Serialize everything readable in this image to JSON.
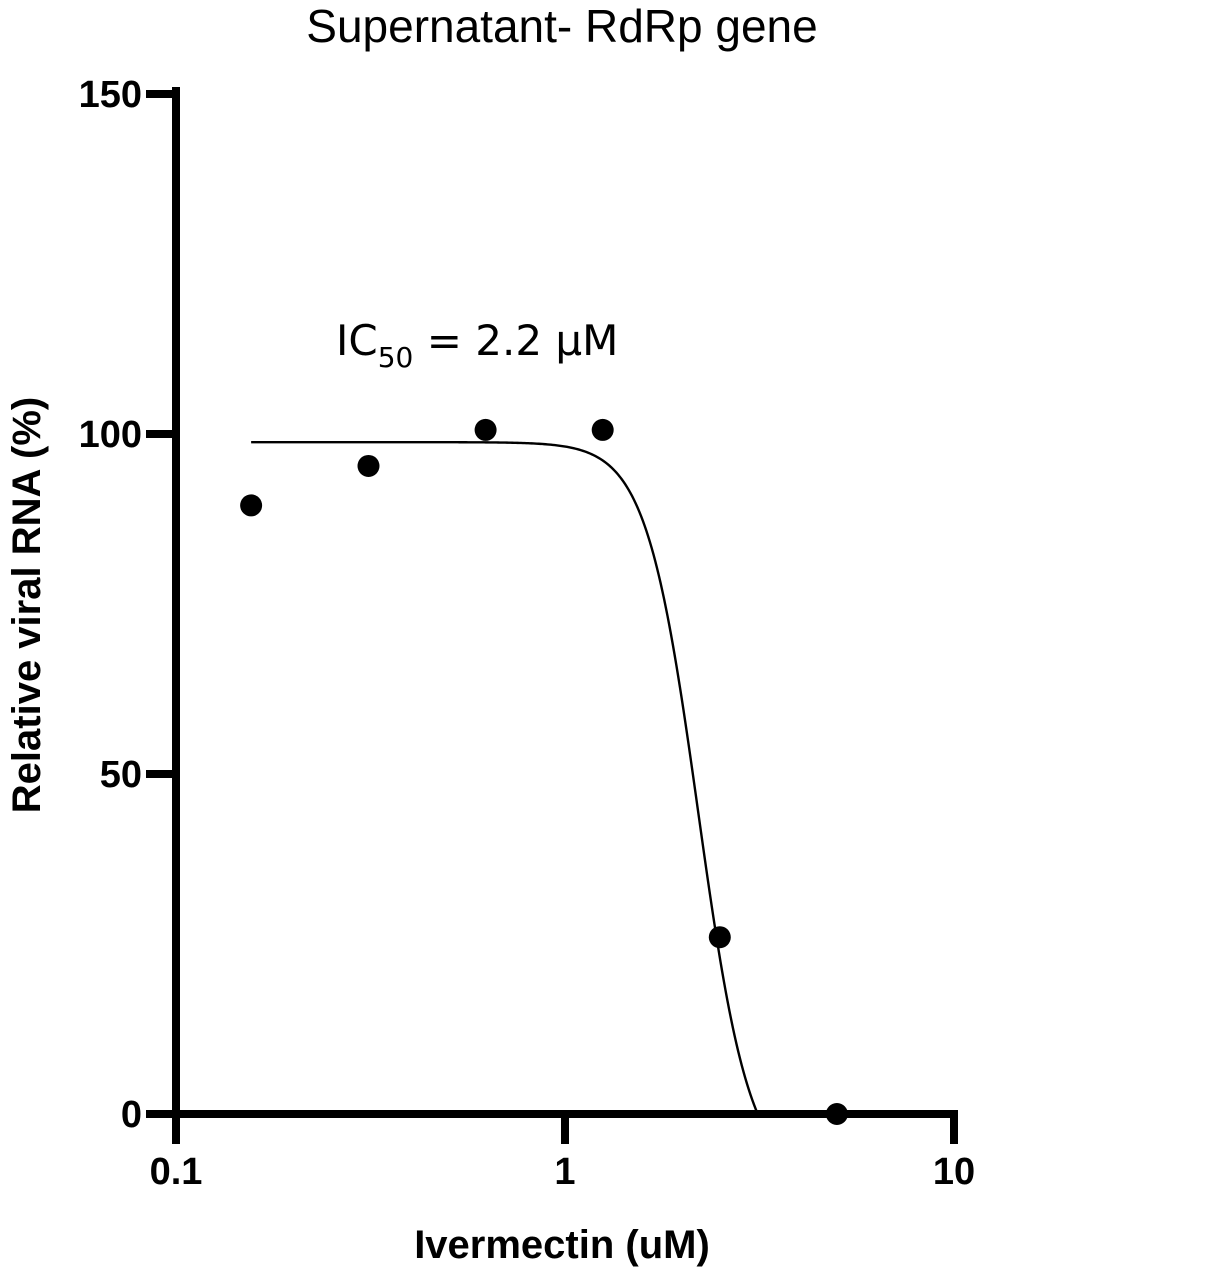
{
  "chart_data": {
    "type": "scatter",
    "title": "Supernatant- RdRp gene",
    "xlabel": "Ivermectin (uM)",
    "ylabel": "Relative viral RNA (%)",
    "x_scale": "log",
    "xlim": [
      0.1,
      10
    ],
    "ylim": [
      0,
      150
    ],
    "x_ticks": [
      {
        "value": 0.1,
        "label": "0.1"
      },
      {
        "value": 1,
        "label": "1"
      },
      {
        "value": 10,
        "label": "10"
      }
    ],
    "y_ticks": [
      {
        "value": 0,
        "label": "0"
      },
      {
        "value": 50,
        "label": "50"
      },
      {
        "value": 100,
        "label": "100"
      },
      {
        "value": 150,
        "label": "150"
      }
    ],
    "points": [
      {
        "x": 0.156,
        "y": 89.5
      },
      {
        "x": 0.3125,
        "y": 95.3
      },
      {
        "x": 0.625,
        "y": 100.6
      },
      {
        "x": 1.25,
        "y": 100.6
      },
      {
        "x": 2.5,
        "y": 26.0
      },
      {
        "x": 5.0,
        "y": 0
      }
    ],
    "fit_curve": {
      "top": 98.8,
      "bottom": -10,
      "ic50": 2.2,
      "hill": 6.5,
      "x_range": [
        0.156,
        3.58
      ]
    },
    "annotation": {
      "prefix": "IC",
      "subscript": "50",
      "suffix": " = 2.2 μM"
    },
    "grid": false,
    "legend": "none",
    "color": "#000000"
  }
}
